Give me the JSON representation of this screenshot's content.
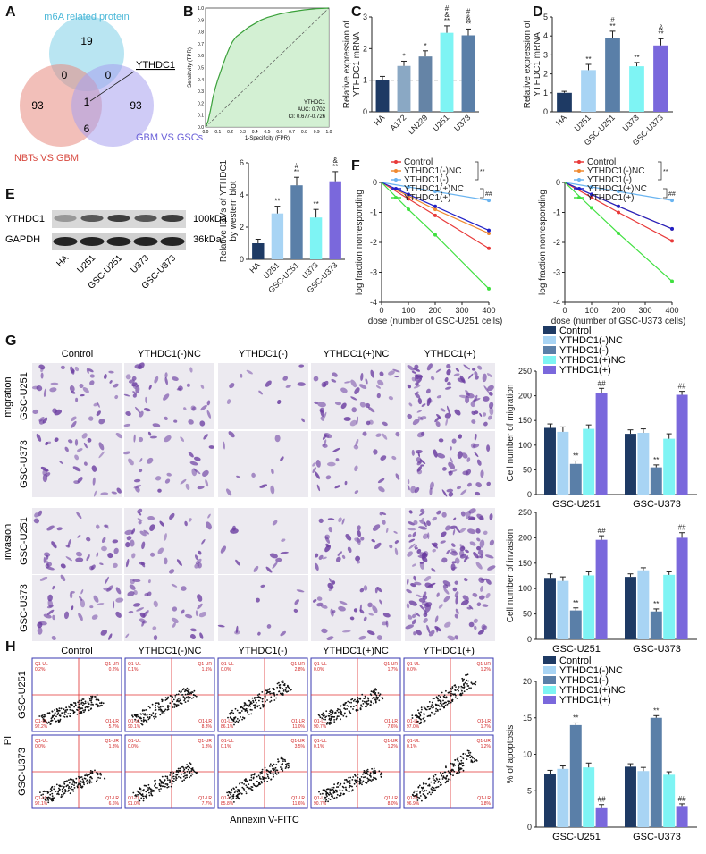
{
  "panel_labels": [
    "A",
    "B",
    "C",
    "D",
    "E",
    "F",
    "G",
    "H"
  ],
  "venn": {
    "circle1": "m6A related protein",
    "circle2": "NBTs VS GBM",
    "circle3": "GBM VS GSCs",
    "counts": [
      "19",
      "0",
      "0",
      "1",
      "93",
      "6",
      "93"
    ],
    "callout": "YTHDC1",
    "colors": {
      "c1": "#7fd0e8",
      "c2": "#e88a80",
      "c3": "#a8a0ee"
    }
  },
  "roc": {
    "xlabel": "1-Specificity (FPR)",
    "ylabel": "Sensitivity (TPR)",
    "ticks": [
      "0.0",
      "0.1",
      "0.2",
      "0.3",
      "0.4",
      "0.5",
      "0.6",
      "0.7",
      "0.8",
      "0.9",
      "1.0"
    ],
    "legend": [
      "YTHDC1",
      "AUC: 0.702",
      "CI: 0.677-0.726"
    ]
  },
  "gsc_labels": {
    "u251": "GSC-U251",
    "u373": "GSC-U373"
  },
  "treatment_labels": [
    "Control",
    "YTHDC1(-)NC",
    "YTHDC1(-)",
    "YTHDC1(+)NC",
    "YTHDC1(+)"
  ],
  "row_labels": {
    "migration": "migration",
    "invasion": "invasion"
  },
  "western": {
    "bands": [
      "YTHDC1",
      "GAPDH"
    ],
    "sizes": [
      "100kDa",
      "36kDa"
    ],
    "lanes": [
      "HA",
      "U251",
      "GSC-U251",
      "U373",
      "GSC-U373"
    ]
  },
  "f_xlabels": [
    "dose (number of GSC-U251 cells)",
    "dose (number of GSC-U373 cells)"
  ],
  "flow": {
    "xlabel": "Annexin V-FITC",
    "ylabel": "PI",
    "quadrants": [
      [
        [
          "Q1-UL",
          "0.2%"
        ],
        [
          "Q1-UR",
          "0.2%"
        ],
        [
          "Q1-LL",
          "92.2%"
        ],
        [
          "Q1-LR",
          "5.7%"
        ]
      ],
      [
        [
          "Q1-UL",
          "0.1%"
        ],
        [
          "Q1-UR",
          "1.1%"
        ],
        [
          "Q1-LL",
          "90.1%"
        ],
        [
          "Q1-LR",
          "8.3%"
        ]
      ],
      [
        [
          "Q1-UL",
          "0.0%"
        ],
        [
          "Q1-UR",
          "2.8%"
        ],
        [
          "Q1-LL",
          "86.1%"
        ],
        [
          "Q1-LR",
          "11.0%"
        ]
      ],
      [
        [
          "Q1-UL",
          "0.0%"
        ],
        [
          "Q1-UR",
          "1.7%"
        ],
        [
          "Q1-LL",
          "90.7%"
        ],
        [
          "Q1-LR",
          "7.6%"
        ]
      ],
      [
        [
          "Q1-UL",
          "0.0%"
        ],
        [
          "Q1-UR",
          "1.2%"
        ],
        [
          "Q1-LL",
          "97.0%"
        ],
        [
          "Q1-LR",
          "1.7%"
        ]
      ],
      [
        [
          "Q1-UL",
          "0.0%"
        ],
        [
          "Q1-UR",
          "1.3%"
        ],
        [
          "Q1-LL",
          "92.1%"
        ],
        [
          "Q1-LR",
          "6.6%"
        ]
      ],
      [
        [
          "Q1-UL",
          "0.0%"
        ],
        [
          "Q1-UR",
          "1.3%"
        ],
        [
          "Q1-LL",
          "91.0%"
        ],
        [
          "Q1-LR",
          "7.7%"
        ]
      ],
      [
        [
          "Q1-UL",
          "0.1%"
        ],
        [
          "Q1-UR",
          "3.5%"
        ],
        [
          "Q1-LL",
          "85.8%"
        ],
        [
          "Q1-LR",
          "11.6%"
        ]
      ],
      [
        [
          "Q1-UL",
          "0.1%"
        ],
        [
          "Q1-UR",
          "1.2%"
        ],
        [
          "Q1-LL",
          "90.7%"
        ],
        [
          "Q1-LR",
          "8.0%"
        ]
      ],
      [
        [
          "Q1-UL",
          "0.1%"
        ],
        [
          "Q1-UR",
          "1.2%"
        ],
        [
          "Q1-LL",
          "96.9%"
        ],
        [
          "Q1-LR",
          "1.8%"
        ]
      ]
    ]
  },
  "colors": {
    "navy": "#1e3a64",
    "lightblue": "#a8d4f4",
    "steel": "#5a7fa8",
    "cyan": "#7ef4f4",
    "purple": "#7a68dc",
    "c1": "#8aa8c4",
    "c2": "#6584a6",
    "c3": "#b4e2f6",
    "line_control": "#e83a3a",
    "line_ncm": "#f08a30",
    "line_minus": "#6ab4f0",
    "line_ncp": "#2020c8",
    "line_plus": "#40e040"
  },
  "chart_data": [
    {
      "panel": "C",
      "type": "bar",
      "categories": [
        "HA",
        "A172",
        "LN229",
        "U251",
        "U373"
      ],
      "values": [
        1.0,
        1.45,
        1.75,
        2.5,
        2.42
      ],
      "errors": [
        0.12,
        0.15,
        0.18,
        0.22,
        0.2
      ],
      "annotations": [
        "",
        "*",
        "*",
        "#\n&\n**",
        "#\n&\n**"
      ],
      "ylabel": "Relative expression of YTHDC1 mRNA",
      "ylim": [
        0,
        3
      ],
      "yticks": [
        0,
        1,
        2,
        3
      ],
      "refline": 1
    },
    {
      "panel": "D",
      "type": "bar",
      "categories": [
        "HA",
        "U251",
        "GSC-U251",
        "U373",
        "GSC-U373"
      ],
      "values": [
        1.0,
        2.2,
        3.9,
        2.4,
        3.5
      ],
      "errors": [
        0.08,
        0.3,
        0.35,
        0.2,
        0.35
      ],
      "annotations": [
        "",
        "**",
        "#\n**",
        "**",
        "&\n**"
      ],
      "ylabel": "Relative expression of YTHDC1 mRNA",
      "ylim": [
        0,
        5
      ],
      "yticks": [
        0,
        1,
        2,
        3,
        4,
        5
      ]
    },
    {
      "panel": "E",
      "type": "bar",
      "categories": [
        "HA",
        "U251",
        "GSC-U251",
        "U373",
        "GSC-U373"
      ],
      "values": [
        1.0,
        2.85,
        4.6,
        2.6,
        4.85
      ],
      "errors": [
        0.25,
        0.45,
        0.5,
        0.5,
        0.6
      ],
      "annotations": [
        "",
        "**",
        "#\n**",
        "**",
        "&\n**"
      ],
      "ylabel": "Relative IDVs of YTHDC1 by western blot",
      "ylim": [
        0,
        6
      ],
      "yticks": [
        0,
        2,
        4,
        6
      ]
    },
    {
      "panel": "F-left",
      "type": "line",
      "x": [
        0,
        100,
        200,
        400
      ],
      "series": [
        {
          "name": "Control",
          "values": [
            0,
            -0.55,
            -1.1,
            -2.2
          ]
        },
        {
          "name": "YTHDC1(-)NC",
          "values": [
            0,
            -0.45,
            -0.9,
            -1.7
          ]
        },
        {
          "name": "YTHDC1(-)",
          "values": [
            0,
            -0.15,
            -0.3,
            -0.6
          ]
        },
        {
          "name": "YTHDC1(+)NC",
          "values": [
            0,
            -0.4,
            -0.8,
            -1.6
          ]
        },
        {
          "name": "YTHDC1(+)",
          "values": [
            0,
            -0.9,
            -1.75,
            -3.55
          ]
        }
      ],
      "sig": [
        {
          "label": "**",
          "from": 0,
          "to": 2
        },
        {
          "label": "##",
          "from": 3,
          "to": 4
        }
      ],
      "ylabel": "log fraction nonresponding",
      "xlabel": "dose (number of GSC-U251 cells)",
      "xlim": [
        0,
        400
      ],
      "ylim": [
        -4,
        0
      ],
      "xticks": [
        0,
        100,
        200,
        300,
        400
      ],
      "yticks": [
        0,
        -1,
        -2,
        -3,
        -4
      ]
    },
    {
      "panel": "F-right",
      "type": "line",
      "x": [
        0,
        100,
        200,
        400
      ],
      "series": [
        {
          "name": "Control",
          "values": [
            0,
            -0.5,
            -1.0,
            -1.95
          ]
        },
        {
          "name": "YTHDC1(-)NC",
          "values": [
            0,
            -0.4,
            -0.8,
            -1.55
          ]
        },
        {
          "name": "YTHDC1(-)",
          "values": [
            0,
            -0.15,
            -0.3,
            -0.6
          ]
        },
        {
          "name": "YTHDC1(+)NC",
          "values": [
            0,
            -0.4,
            -0.8,
            -1.55
          ]
        },
        {
          "name": "YTHDC1(+)",
          "values": [
            0,
            -0.85,
            -1.7,
            -3.3
          ]
        }
      ],
      "sig": [
        {
          "label": "**",
          "from": 0,
          "to": 2
        },
        {
          "label": "##",
          "from": 3,
          "to": 4
        }
      ],
      "ylabel": "log fraction nonresponding",
      "xlabel": "dose (number of GSC-U373 cells)",
      "xlim": [
        0,
        400
      ],
      "ylim": [
        -4,
        0
      ],
      "xticks": [
        0,
        100,
        200,
        300,
        400
      ],
      "yticks": [
        0,
        -1,
        -2,
        -3,
        -4
      ]
    },
    {
      "panel": "G-migration",
      "type": "bar",
      "categories": [
        "GSC-U251",
        "GSC-U373"
      ],
      "series": [
        {
          "name": "Control",
          "values": [
            135,
            123
          ],
          "errors": [
            8,
            8
          ]
        },
        {
          "name": "YTHDC1(-)NC",
          "values": [
            127,
            125
          ],
          "errors": [
            10,
            8
          ]
        },
        {
          "name": "YTHDC1(-)",
          "values": [
            62,
            55
          ],
          "errors": [
            6,
            5
          ]
        },
        {
          "name": "YTHDC1(+)NC",
          "values": [
            133,
            113
          ],
          "errors": [
            8,
            10
          ]
        },
        {
          "name": "YTHDC1(+)",
          "values": [
            205,
            202
          ],
          "errors": [
            10,
            7
          ]
        }
      ],
      "annotations": {
        "YTHDC1(-)": "**",
        "YTHDC1(+)": "##"
      },
      "ylabel": "Cell number of migration",
      "ylim": [
        0,
        250
      ],
      "yticks": [
        0,
        50,
        100,
        150,
        200,
        250
      ],
      "legend": "top"
    },
    {
      "panel": "G-invasion",
      "type": "bar",
      "categories": [
        "GSC-U251",
        "GSC-U373"
      ],
      "series": [
        {
          "name": "Control",
          "values": [
            121,
            123
          ],
          "errors": [
            8,
            6
          ]
        },
        {
          "name": "YTHDC1(-)NC",
          "values": [
            115,
            136
          ],
          "errors": [
            8,
            5
          ]
        },
        {
          "name": "YTHDC1(-)",
          "values": [
            57,
            55
          ],
          "errors": [
            5,
            5
          ]
        },
        {
          "name": "YTHDC1(+)NC",
          "values": [
            126,
            127
          ],
          "errors": [
            7,
            6
          ]
        },
        {
          "name": "YTHDC1(+)",
          "values": [
            196,
            200
          ],
          "errors": [
            8,
            10
          ]
        }
      ],
      "annotations": {
        "YTHDC1(-)": "**",
        "YTHDC1(+)": "##"
      },
      "ylabel": "Cell number of invasion",
      "ylim": [
        0,
        250
      ],
      "yticks": [
        0,
        50,
        100,
        150,
        200,
        250
      ]
    },
    {
      "panel": "H-bar",
      "type": "bar",
      "categories": [
        "GSC-U251",
        "GSC-U373"
      ],
      "series": [
        {
          "name": "Control",
          "values": [
            7.3,
            8.3
          ],
          "errors": [
            0.5,
            0.4
          ]
        },
        {
          "name": "YTHDC1(-)NC",
          "values": [
            8.0,
            7.7
          ],
          "errors": [
            0.4,
            0.5
          ]
        },
        {
          "name": "YTHDC1(-)",
          "values": [
            14.0,
            15.0
          ],
          "errors": [
            0.3,
            0.3
          ]
        },
        {
          "name": "YTHDC1(+)NC",
          "values": [
            8.2,
            7.2
          ],
          "errors": [
            0.6,
            0.4
          ]
        },
        {
          "name": "YTHDC1(+)",
          "values": [
            2.6,
            2.9
          ],
          "errors": [
            0.5,
            0.3
          ]
        }
      ],
      "annotations": {
        "YTHDC1(-)": "**",
        "YTHDC1(+)": "##"
      },
      "ylabel": "% of apoptosis",
      "ylim": [
        0,
        20
      ],
      "yticks": [
        0,
        5,
        10,
        15,
        20
      ],
      "legend": "top"
    }
  ]
}
